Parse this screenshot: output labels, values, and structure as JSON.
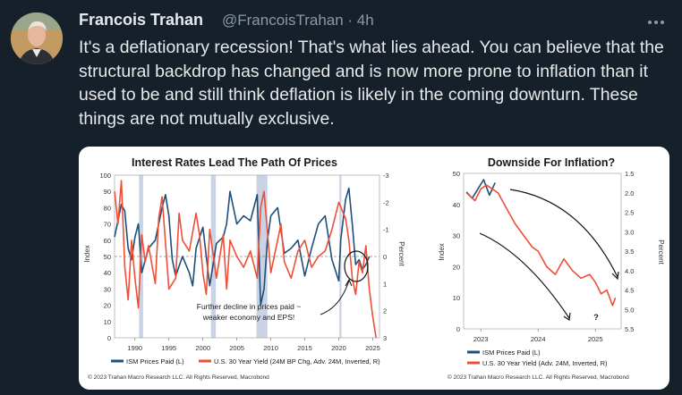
{
  "tweet": {
    "author_name": "Francois Trahan",
    "handle_time": "@FrancoisTrahan · 4h",
    "more_icon": "more-horizontal-icon",
    "text": "It's a deflationary recession! That's what lies ahead. You can believe that the structural backdrop has changed and is now more prone to inflation than it used to be and still think deflation is likely in the coming downturn. These things are not mutually exclusive."
  },
  "colors": {
    "background": "#15202b",
    "text": "#e7e9ea",
    "muted": "#8b98a5",
    "ism": "#1f4e79",
    "yield": "#f04e37"
  },
  "chart_data": [
    {
      "type": "line",
      "title": "Interest Rates Lead The Path Of Prices",
      "ylabel": "Index",
      "y2label": "Percent",
      "xlim": [
        1987,
        2026
      ],
      "ylim": [
        0,
        100
      ],
      "y2lim": [
        -3,
        3
      ],
      "y2_inverted": true,
      "x_ticks": [
        "1990",
        "1995",
        "2000",
        "2005",
        "2010",
        "2015",
        "2020",
        "2025"
      ],
      "y_ticks": [
        "0",
        "10",
        "20",
        "30",
        "40",
        "50",
        "60",
        "70",
        "80",
        "90",
        "100"
      ],
      "y2_ticks": [
        "-3",
        "-2",
        "-1",
        "0",
        "1",
        "2",
        "3"
      ],
      "recessions": [
        [
          1990.6,
          1991.2
        ],
        [
          2001.2,
          2001.9
        ],
        [
          2007.9,
          2009.5
        ],
        [
          2020.1,
          2020.4
        ]
      ],
      "annotation": [
        "Further decline in prices paid ~",
        "weaker economy and EPS!"
      ],
      "series": [
        {
          "name": "ISM Prices Paid (L)",
          "axis": "left",
          "x": [
            1987,
            1988,
            1988.5,
            1989,
            1989.5,
            1990,
            1990.5,
            1991,
            1992,
            1993,
            1994,
            1994.5,
            1995,
            1995.5,
            1996,
            1997,
            1998,
            1998.5,
            1999,
            2000,
            2001,
            2002,
            2003,
            2003.5,
            2004,
            2004.5,
            2005,
            2006,
            2007,
            2008,
            2008.5,
            2009,
            2009.5,
            2010,
            2011,
            2012,
            2013,
            2014,
            2015,
            2016,
            2017,
            2018,
            2019,
            2020,
            2020.3,
            2021,
            2021.5,
            2022,
            2022.5,
            2023,
            2023.5,
            2024,
            2024.5
          ],
          "values": [
            62,
            82,
            78,
            55,
            48,
            62,
            70,
            40,
            55,
            60,
            80,
            88,
            75,
            48,
            38,
            50,
            40,
            32,
            55,
            68,
            32,
            58,
            62,
            70,
            90,
            80,
            70,
            75,
            72,
            88,
            20,
            30,
            60,
            75,
            80,
            52,
            55,
            60,
            38,
            55,
            70,
            75,
            48,
            35,
            60,
            85,
            92,
            70,
            45,
            48,
            42,
            45,
            50
          ]
        },
        {
          "name": "U.S. 30 Year Yield (24M BP Chg, Adv. 24M, Inverted, R)",
          "axis": "right",
          "x": [
            1987,
            1987.5,
            1988,
            1988.5,
            1989,
            1989.5,
            1990,
            1990.5,
            1991,
            1991.5,
            1992,
            1993,
            1993.5,
            1994,
            1995,
            1996,
            1996.5,
            1997,
            1998,
            1999,
            1999.5,
            2000,
            2000.5,
            2001,
            2002,
            2003,
            2003.5,
            2004,
            2005,
            2006,
            2007,
            2008,
            2008.5,
            2009,
            2010,
            2011,
            2011.5,
            2012,
            2013,
            2014,
            2015,
            2016,
            2017,
            2018,
            2019,
            2020,
            2021,
            2021.5,
            2022,
            2022.5,
            2023,
            2023.5,
            2024,
            2024.5,
            2025,
            2025.5
          ],
          "values": [
            -2.4,
            -1.2,
            -2.8,
            0.4,
            1.6,
            -0.6,
            0.8,
            1.9,
            -0.8,
            0.2,
            -0.4,
            1.0,
            -1.4,
            -2.2,
            1.2,
            0.8,
            -1.6,
            -0.6,
            -0.2,
            -1.6,
            -0.8,
            0.6,
            1.4,
            -1.0,
            0.8,
            -0.8,
            1.2,
            -0.6,
            0.0,
            0.4,
            -0.2,
            0.8,
            -1.8,
            -2.4,
            0.6,
            -0.6,
            -1.2,
            0.2,
            0.8,
            -0.2,
            -0.6,
            0.4,
            0.0,
            -0.2,
            -1.0,
            -2.0,
            -1.4,
            -0.6,
            0.8,
            1.4,
            0.2,
            0.6,
            -0.4,
            1.2,
            2.2,
            3.0
          ]
        }
      ],
      "legend": "bottom"
    },
    {
      "type": "line",
      "title": "Downside For Inflation?",
      "ylabel": "Index",
      "y2label": "Percent",
      "xlim": [
        2022.7,
        2025.45
      ],
      "ylim": [
        0,
        50
      ],
      "y2lim": [
        1.5,
        5.5
      ],
      "y2_inverted": true,
      "x_ticks": [
        "2023",
        "2024",
        "2025"
      ],
      "y_ticks": [
        "0",
        "10",
        "20",
        "30",
        "40",
        "50"
      ],
      "y2_ticks": [
        "1.5",
        "2.0",
        "2.5",
        "3.0",
        "3.5",
        "4.0",
        "4.5",
        "5.0",
        "5.5"
      ],
      "annotation": [
        "?"
      ],
      "series": [
        {
          "name": "ISM Prices Paid (L)",
          "axis": "left",
          "x": [
            2022.75,
            2022.85,
            2022.95,
            2023.05,
            2023.15,
            2023.25
          ],
          "values": [
            44,
            42,
            45,
            48,
            43,
            47
          ]
        },
        {
          "name": "U.S. 30 Year Yield (Adv. 24M, Inverted, R)",
          "axis": "right",
          "x": [
            2022.75,
            2022.9,
            2023.0,
            2023.1,
            2023.2,
            2023.3,
            2023.45,
            2023.6,
            2023.75,
            2023.9,
            2024.0,
            2024.15,
            2024.3,
            2024.45,
            2024.6,
            2024.75,
            2024.9,
            2025.0,
            2025.1,
            2025.2,
            2025.3,
            2025.35
          ],
          "values": [
            2.0,
            2.2,
            1.9,
            1.8,
            1.9,
            2.0,
            2.4,
            2.8,
            3.1,
            3.4,
            3.5,
            3.9,
            4.1,
            3.7,
            4.0,
            4.2,
            4.1,
            4.3,
            4.6,
            4.5,
            4.9,
            4.7
          ]
        }
      ],
      "legend": "bottom"
    }
  ],
  "copyright_left": "© 2023 Trahan Macro Research LLC. All Rights Reserved, Macrobond",
  "copyright_right": "© 2023 Trahan Macro Research LLC. All Rights Reserved, Macrobond"
}
